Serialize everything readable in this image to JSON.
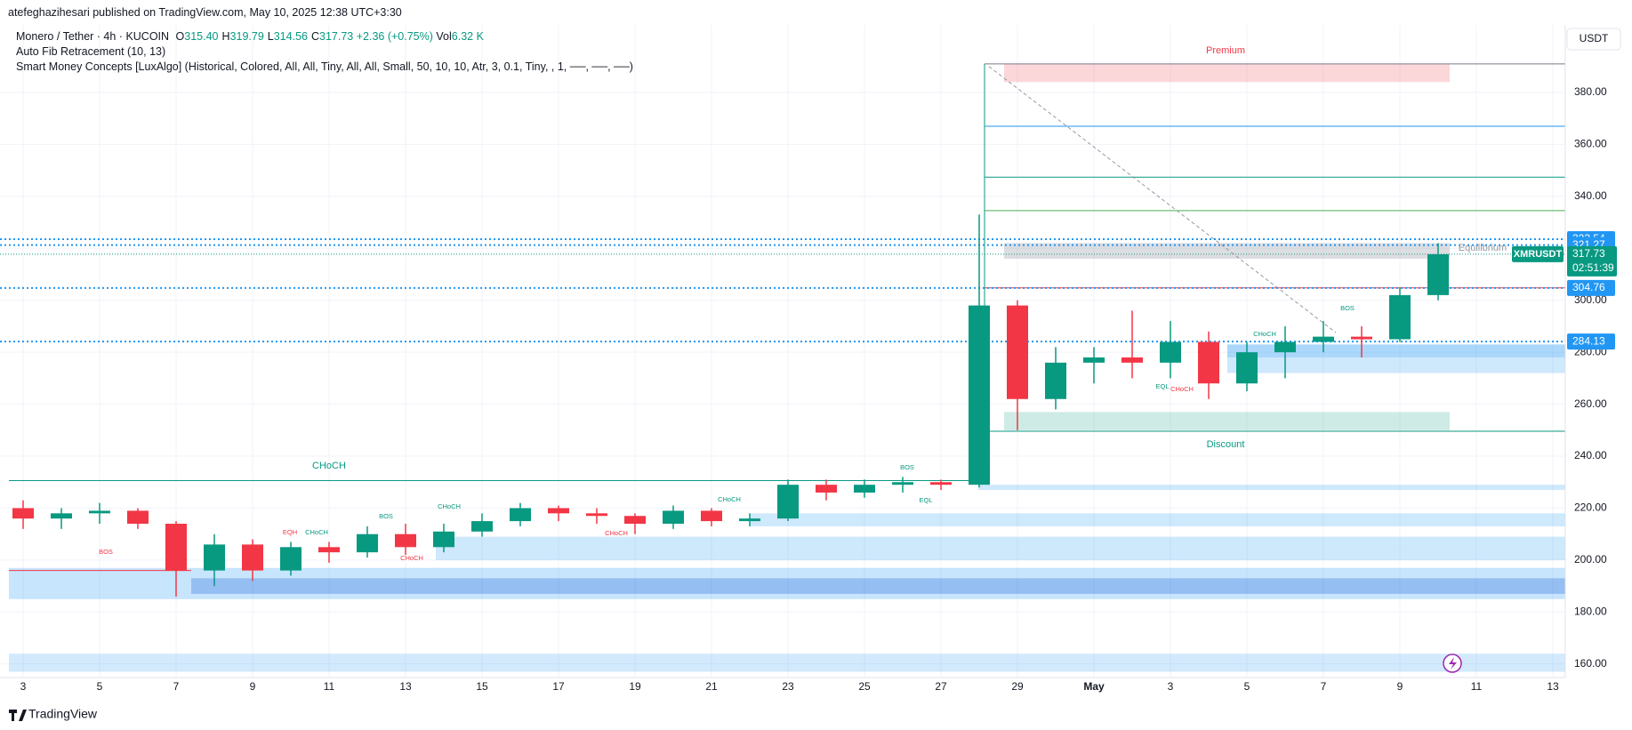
{
  "header": {
    "publisher": "atefeghazihesari published on TradingView.com, May 10, 2025 12:38 UTC+3:30",
    "symbol": "Monero / Tether · 4h · KUCOIN",
    "ohlc": [
      {
        "key": "O",
        "value": "315.40"
      },
      {
        "key": "H",
        "value": "319.79"
      },
      {
        "key": "L",
        "value": "314.56"
      },
      {
        "key": "C",
        "value": "317.73"
      }
    ],
    "change": "+2.36 (+0.75%)",
    "vol_key": "Vol",
    "vol": "6.32 K",
    "indicators": [
      "Auto Fib Retracement (10, 13)",
      "Smart Money Concepts [LuxAlgo] (Historical, Colored, All, All, Tiny, All, All, Small, 50, 10, 10, Atr, 3, 0.1, Tiny, , 1, ──, ──, ──)"
    ]
  },
  "chart_data": {
    "type": "candlestick",
    "currency": "USDT",
    "categories": [
      "3",
      null,
      "5",
      null,
      "7",
      null,
      "9",
      null,
      "11",
      null,
      "13",
      null,
      "15",
      null,
      "17",
      null,
      "19",
      null,
      "21",
      null,
      "23",
      null,
      "25",
      null,
      "27",
      null,
      "29",
      null,
      "May",
      null,
      "3",
      null,
      "5",
      null,
      "7",
      null,
      "9",
      null,
      "11",
      null,
      "13"
    ],
    "open": [
      220,
      216,
      218,
      219,
      214,
      196,
      206,
      196,
      205,
      203,
      210,
      205,
      211,
      215,
      220,
      218,
      217,
      214,
      219,
      215,
      216,
      229,
      226,
      229,
      230,
      229,
      298,
      262,
      276,
      278,
      276,
      284,
      268,
      280,
      284,
      286,
      285,
      302,
      null,
      null,
      null
    ],
    "high": [
      223,
      220,
      222,
      220,
      215,
      210,
      208,
      207,
      207,
      213,
      214,
      214,
      218,
      222,
      221,
      220,
      218,
      221,
      220,
      218,
      231,
      231,
      231,
      232,
      231,
      333,
      300,
      282,
      282,
      296,
      292,
      288,
      284,
      290,
      292,
      290,
      305,
      322,
      null,
      null,
      null
    ],
    "low": [
      212,
      212,
      214,
      212,
      186,
      190,
      192,
      194,
      199,
      201,
      202,
      203,
      209,
      213,
      215,
      214,
      210,
      212,
      213,
      213,
      215,
      223,
      224,
      226,
      227,
      228,
      250,
      258,
      268,
      270,
      270,
      262,
      265,
      270,
      280,
      278,
      284,
      300,
      null,
      null,
      null
    ],
    "close": [
      216,
      218,
      219,
      214,
      196,
      206,
      196,
      205,
      203,
      210,
      205,
      211,
      215,
      220,
      218,
      217,
      214,
      219,
      215,
      216,
      229,
      226,
      229,
      230,
      229,
      298,
      262,
      276,
      278,
      276,
      284,
      268,
      280,
      284,
      286,
      285,
      302,
      317.73,
      null,
      null,
      null
    ],
    "up_color": "#089981",
    "down_color": "#f23645",
    "ylim": [
      154.8,
      406
    ],
    "yticks": [
      {
        "value": 160,
        "label": "160.00"
      },
      {
        "value": 180,
        "label": "180.00"
      },
      {
        "value": 200,
        "label": "200.00"
      },
      {
        "value": 220,
        "label": "220.00"
      },
      {
        "value": 240,
        "label": "240.00"
      },
      {
        "value": 260,
        "label": "260.00"
      },
      {
        "value": 280,
        "label": "280.00"
      },
      {
        "value": 300,
        "label": "300.00"
      },
      {
        "value": 320,
        "label": "320.00"
      },
      {
        "value": 340,
        "label": "340.00"
      },
      {
        "value": 360,
        "label": "360.00"
      },
      {
        "value": 380,
        "label": "380.00"
      }
    ],
    "grid": true,
    "price_labels": [
      {
        "value": 323.54,
        "label": "323.54",
        "color": "#2196f3"
      },
      {
        "value": 321.27,
        "label": "321.27",
        "color": "#2196f3"
      },
      {
        "value": 304.76,
        "label": "304.76",
        "color": "#2196f3"
      },
      {
        "value": 284.13,
        "label": "284.13",
        "color": "#2196f3"
      }
    ],
    "last_price": {
      "value": 317.73,
      "label": "317.73",
      "symbol": "XMRUSDT",
      "countdown": "02:51:39",
      "color": "#089981"
    },
    "fib_levels": [
      {
        "value": 391,
        "color": "#787b86"
      },
      {
        "value": 367,
        "color": "#2196f3"
      },
      {
        "value": 347.4,
        "color": "#089981"
      },
      {
        "value": 334.5,
        "color": "#4caf50"
      },
      {
        "value": 304.8,
        "color": "#f23645"
      },
      {
        "value": 249.6,
        "color": "#089981"
      }
    ],
    "zones": [
      {
        "low": 384,
        "high": 391,
        "color": "rgba(242,54,69,0.2)"
      },
      {
        "low": 316,
        "high": 322,
        "color": "rgba(120,123,134,0.25)"
      },
      {
        "low": 250,
        "high": 257,
        "color": "rgba(8,153,129,0.2)"
      },
      {
        "low": 157,
        "high": 164,
        "color": "rgba(33,150,243,0.2)"
      },
      {
        "low": 185,
        "high": 197,
        "color": "rgba(33,150,243,0.25)"
      },
      {
        "low": 187,
        "high": 193,
        "color": "rgba(33,100,220,0.3)"
      },
      {
        "low": 200,
        "high": 209,
        "color": "rgba(33,150,243,0.22)"
      },
      {
        "low": 213,
        "high": 218,
        "color": "rgba(33,150,243,0.22)"
      },
      {
        "low": 227,
        "high": 229,
        "color": "rgba(33,150,243,0.22)"
      },
      {
        "low": 272,
        "high": 283,
        "color": "rgba(33,150,243,0.22)"
      },
      {
        "low": 278,
        "high": 283,
        "color": "rgba(33,150,243,0.2)"
      }
    ],
    "structure_lines": [
      {
        "value": 230.6,
        "color": "#089981"
      },
      {
        "value": 196,
        "color": "#f23645"
      }
    ],
    "annotations": [
      {
        "text": "Premium",
        "color": "#f23645"
      },
      {
        "text": "Equilibrium",
        "color": "#9598a1"
      },
      {
        "text": "Discount",
        "color": "#089981"
      },
      {
        "text": "CHoCH",
        "color": "#089981"
      },
      {
        "text": "BOS",
        "color": "#f23645"
      },
      {
        "text": "EQH",
        "color": "#f23645"
      },
      {
        "text": "CHoCH",
        "color": "#089981"
      },
      {
        "text": "BOS",
        "color": "#089981"
      },
      {
        "text": "CHoCH",
        "color": "#f23645"
      },
      {
        "text": "CHoCH",
        "color": "#089981"
      },
      {
        "text": "CHoCH",
        "color": "#f23645"
      },
      {
        "text": "CHoCH",
        "color": "#089981"
      },
      {
        "text": "BOS",
        "color": "#089981"
      },
      {
        "text": "EQL",
        "color": "#089981"
      },
      {
        "text": "EQL",
        "color": "#089981"
      },
      {
        "text": "CHoCH",
        "color": "#f23645"
      },
      {
        "text": "CHoCH",
        "color": "#089981"
      },
      {
        "text": "BOS",
        "color": "#089981"
      }
    ]
  },
  "footer": {
    "brand": "TradingView"
  }
}
